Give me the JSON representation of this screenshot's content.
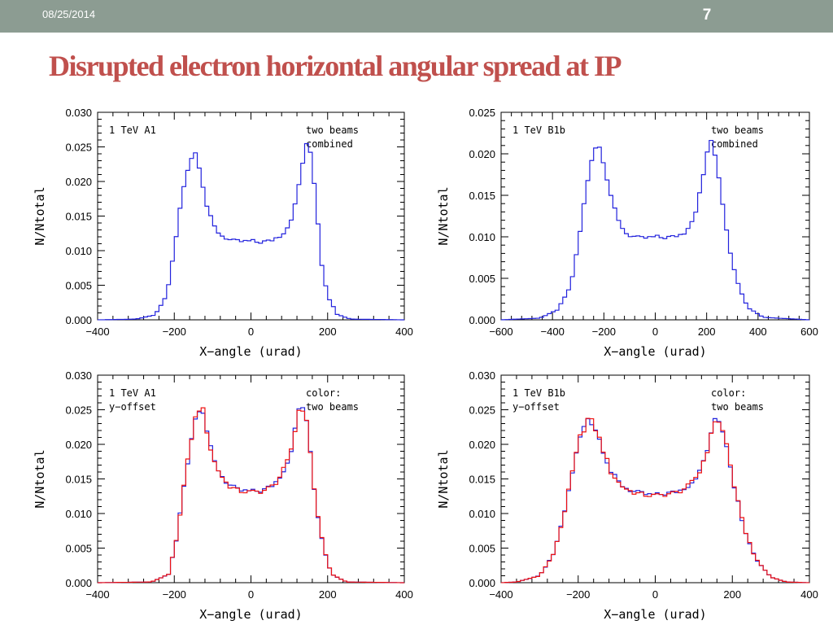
{
  "header": {
    "date": "08/25/2014",
    "slide_number": "7"
  },
  "title": "Disrupted electron horizontal angular spread at IP",
  "colors": {
    "accent_title": "#c0504d",
    "header_bar": "#8c9c92",
    "series_blue": "#2222dd",
    "series_red": "#ee1111"
  },
  "chart_data": [
    {
      "type": "line",
      "step": true,
      "xlabel": "X−angle (urad)",
      "ylabel": "N/Ntotal",
      "xlim": [
        -400,
        400
      ],
      "ylim": [
        0,
        0.03
      ],
      "xticks": [
        -400,
        -200,
        0,
        200,
        400
      ],
      "xtick_labels": [
        "−400",
        "−200",
        "0",
        "200",
        "400"
      ],
      "yticks": [
        0.0,
        0.005,
        0.01,
        0.015,
        0.02,
        0.025,
        0.03
      ],
      "ytick_labels": [
        "0.000",
        "0.005",
        "0.010",
        "0.015",
        "0.020",
        "0.025",
        "0.030"
      ],
      "annotation_left": [
        "1 TeV A1"
      ],
      "annotation_right": [
        "two beams",
        "combined"
      ],
      "series": [
        {
          "color": "#2222dd",
          "shape": [
            [
              -400,
              0
            ],
            [
              -300,
              0.0001
            ],
            [
              -250,
              0.0007
            ],
            [
              -220,
              0.0035
            ],
            [
              -200,
              0.01
            ],
            [
              -180,
              0.018
            ],
            [
              -165,
              0.022
            ],
            [
              -150,
              0.0243
            ],
            [
              -140,
              0.024
            ],
            [
              -130,
              0.021
            ],
            [
              -115,
              0.0165
            ],
            [
              -100,
              0.0138
            ],
            [
              -80,
              0.0123
            ],
            [
              -50,
              0.0114
            ],
            [
              -20,
              0.0113
            ],
            [
              0,
              0.0114
            ],
            [
              20,
              0.0112
            ],
            [
              50,
              0.0114
            ],
            [
              80,
              0.0123
            ],
            [
              100,
              0.0138
            ],
            [
              115,
              0.0165
            ],
            [
              130,
              0.021
            ],
            [
              140,
              0.0245
            ],
            [
              150,
              0.0255
            ],
            [
              160,
              0.023
            ],
            [
              170,
              0.017
            ],
            [
              185,
              0.008
            ],
            [
              200,
              0.0035
            ],
            [
              225,
              0.0008
            ],
            [
              260,
              0.0001
            ],
            [
              400,
              0
            ]
          ],
          "points": []
        }
      ]
    },
    {
      "type": "line",
      "step": true,
      "xlabel": "X−angle (urad)",
      "ylabel": "N/Ntotal",
      "xlim": [
        -600,
        600
      ],
      "ylim": [
        0,
        0.025
      ],
      "xticks": [
        -600,
        -400,
        -200,
        0,
        200,
        400,
        600
      ],
      "xtick_labels": [
        "−600",
        "−400",
        "−200",
        "0",
        "200",
        "400",
        "600"
      ],
      "yticks": [
        0.0,
        0.005,
        0.01,
        0.015,
        0.02,
        0.025
      ],
      "ytick_labels": [
        "0.000",
        "0.005",
        "0.010",
        "0.015",
        "0.020",
        "0.025"
      ],
      "annotation_left": [
        "1 TeV B1b"
      ],
      "annotation_right": [
        "two beams",
        "combined"
      ],
      "series": [
        {
          "color": "#2222dd",
          "shape": [
            [
              -600,
              0
            ],
            [
              -450,
              0.0002
            ],
            [
              -380,
              0.0012
            ],
            [
              -330,
              0.004
            ],
            [
              -300,
              0.009
            ],
            [
              -270,
              0.0155
            ],
            [
              -245,
              0.02
            ],
            [
              -225,
              0.0214
            ],
            [
              -205,
              0.0198
            ],
            [
              -180,
              0.016
            ],
            [
              -150,
              0.0122
            ],
            [
              -110,
              0.0103
            ],
            [
              -60,
              0.0098
            ],
            [
              -20,
              0.0099
            ],
            [
              0,
              0.01
            ],
            [
              30,
              0.0099
            ],
            [
              70,
              0.01
            ],
            [
              110,
              0.0104
            ],
            [
              150,
              0.0123
            ],
            [
              180,
              0.016
            ],
            [
              205,
              0.0208
            ],
            [
              220,
              0.0213
            ],
            [
              240,
              0.019
            ],
            [
              265,
              0.0135
            ],
            [
              290,
              0.0085
            ],
            [
              320,
              0.0045
            ],
            [
              360,
              0.0015
            ],
            [
              420,
              0.0003
            ],
            [
              600,
              0
            ]
          ],
          "points": []
        }
      ]
    },
    {
      "type": "line",
      "step": true,
      "xlabel": "X−angle (urad)",
      "ylabel": "N/Ntotal",
      "xlim": [
        -400,
        400
      ],
      "ylim": [
        0,
        0.03
      ],
      "xticks": [
        -400,
        -200,
        0,
        200,
        400
      ],
      "xtick_labels": [
        "−400",
        "−200",
        "0",
        "200",
        "400"
      ],
      "yticks": [
        0.0,
        0.005,
        0.01,
        0.015,
        0.02,
        0.025,
        0.03
      ],
      "ytick_labels": [
        "0.000",
        "0.005",
        "0.010",
        "0.015",
        "0.020",
        "0.025",
        "0.030"
      ],
      "annotation_left": [
        "1 TeV A1",
        "y−offset"
      ],
      "annotation_right": [
        "color:",
        "two beams"
      ],
      "series": [
        {
          "color": "#2222dd",
          "shape": [
            [
              -400,
              0
            ],
            [
              -260,
              0.0001
            ],
            [
              -215,
              0.0012
            ],
            [
              -195,
              0.006
            ],
            [
              -175,
              0.014
            ],
            [
              -155,
              0.021
            ],
            [
              -140,
              0.025
            ],
            [
              -128,
              0.0258
            ],
            [
              -115,
              0.022
            ],
            [
              -100,
              0.018
            ],
            [
              -80,
              0.0158
            ],
            [
              -60,
              0.0142
            ],
            [
              -30,
              0.0133
            ],
            [
              0,
              0.0132
            ],
            [
              30,
              0.0133
            ],
            [
              60,
              0.0142
            ],
            [
              80,
              0.0158
            ],
            [
              100,
              0.018
            ],
            [
              115,
              0.022
            ],
            [
              128,
              0.026
            ],
            [
              140,
              0.025
            ],
            [
              155,
              0.019
            ],
            [
              170,
              0.011
            ],
            [
              190,
              0.005
            ],
            [
              210,
              0.0012
            ],
            [
              250,
              0.0001
            ],
            [
              400,
              0
            ]
          ],
          "points": []
        },
        {
          "color": "#ee1111",
          "shape": [
            [
              -400,
              0
            ],
            [
              -260,
              0.0001
            ],
            [
              -215,
              0.0012
            ],
            [
              -195,
              0.006
            ],
            [
              -175,
              0.014
            ],
            [
              -155,
              0.021
            ],
            [
              -140,
              0.025
            ],
            [
              -128,
              0.0256
            ],
            [
              -115,
              0.022
            ],
            [
              -100,
              0.018
            ],
            [
              -80,
              0.0157
            ],
            [
              -60,
              0.0141
            ],
            [
              -30,
              0.0132
            ],
            [
              0,
              0.0131
            ],
            [
              30,
              0.0132
            ],
            [
              60,
              0.0141
            ],
            [
              80,
              0.0157
            ],
            [
              100,
              0.018
            ],
            [
              115,
              0.022
            ],
            [
              128,
              0.0258
            ],
            [
              140,
              0.025
            ],
            [
              155,
              0.019
            ],
            [
              170,
              0.011
            ],
            [
              190,
              0.005
            ],
            [
              210,
              0.0012
            ],
            [
              250,
              0.0001
            ],
            [
              400,
              0
            ]
          ],
          "points": []
        }
      ]
    },
    {
      "type": "line",
      "step": true,
      "xlabel": "X−angle (urad)",
      "ylabel": "N/Ntotal",
      "xlim": [
        -400,
        400
      ],
      "ylim": [
        0,
        0.03
      ],
      "xticks": [
        -400,
        -200,
        0,
        200,
        400
      ],
      "xtick_labels": [
        "−400",
        "−200",
        "0",
        "200",
        "400"
      ],
      "yticks": [
        0.0,
        0.005,
        0.01,
        0.015,
        0.02,
        0.025,
        0.03
      ],
      "ytick_labels": [
        "0.000",
        "0.005",
        "0.010",
        "0.015",
        "0.020",
        "0.025",
        "0.030"
      ],
      "annotation_left": [
        "1 TeV B1b",
        "y−offset"
      ],
      "annotation_right": [
        "color:",
        "two beams"
      ],
      "series": [
        {
          "color": "#2222dd",
          "shape": [
            [
              -400,
              0
            ],
            [
              -360,
              0.0001
            ],
            [
              -300,
              0.001
            ],
            [
              -265,
              0.004
            ],
            [
              -240,
              0.009
            ],
            [
              -215,
              0.016
            ],
            [
              -195,
              0.021
            ],
            [
              -175,
              0.0238
            ],
            [
              -160,
              0.023
            ],
            [
              -140,
              0.02
            ],
            [
              -115,
              0.016
            ],
            [
              -90,
              0.0142
            ],
            [
              -60,
              0.0132
            ],
            [
              -20,
              0.0127
            ],
            [
              0,
              0.0127
            ],
            [
              20,
              0.0128
            ],
            [
              60,
              0.0132
            ],
            [
              90,
              0.0142
            ],
            [
              115,
              0.016
            ],
            [
              140,
              0.02
            ],
            [
              158,
              0.0245
            ],
            [
              170,
              0.023
            ],
            [
              185,
              0.02
            ],
            [
              205,
              0.014
            ],
            [
              230,
              0.008
            ],
            [
              260,
              0.0035
            ],
            [
              300,
              0.0008
            ],
            [
              340,
              0.0001
            ],
            [
              400,
              0
            ]
          ],
          "points": []
        },
        {
          "color": "#ee1111",
          "shape": [
            [
              -400,
              0
            ],
            [
              -360,
              0.0001
            ],
            [
              -300,
              0.001
            ],
            [
              -265,
              0.004
            ],
            [
              -240,
              0.009
            ],
            [
              -215,
              0.016
            ],
            [
              -195,
              0.021
            ],
            [
              -175,
              0.0236
            ],
            [
              -160,
              0.023
            ],
            [
              -140,
              0.02
            ],
            [
              -115,
              0.016
            ],
            [
              -90,
              0.0141
            ],
            [
              -60,
              0.0131
            ],
            [
              -20,
              0.0126
            ],
            [
              0,
              0.0126
            ],
            [
              20,
              0.0127
            ],
            [
              60,
              0.0131
            ],
            [
              90,
              0.0141
            ],
            [
              115,
              0.016
            ],
            [
              140,
              0.02
            ],
            [
              158,
              0.0242
            ],
            [
              170,
              0.0228
            ],
            [
              185,
              0.02
            ],
            [
              205,
              0.014
            ],
            [
              230,
              0.008
            ],
            [
              260,
              0.0035
            ],
            [
              300,
              0.0008
            ],
            [
              340,
              0.0001
            ],
            [
              400,
              0
            ]
          ],
          "points": []
        }
      ]
    }
  ]
}
